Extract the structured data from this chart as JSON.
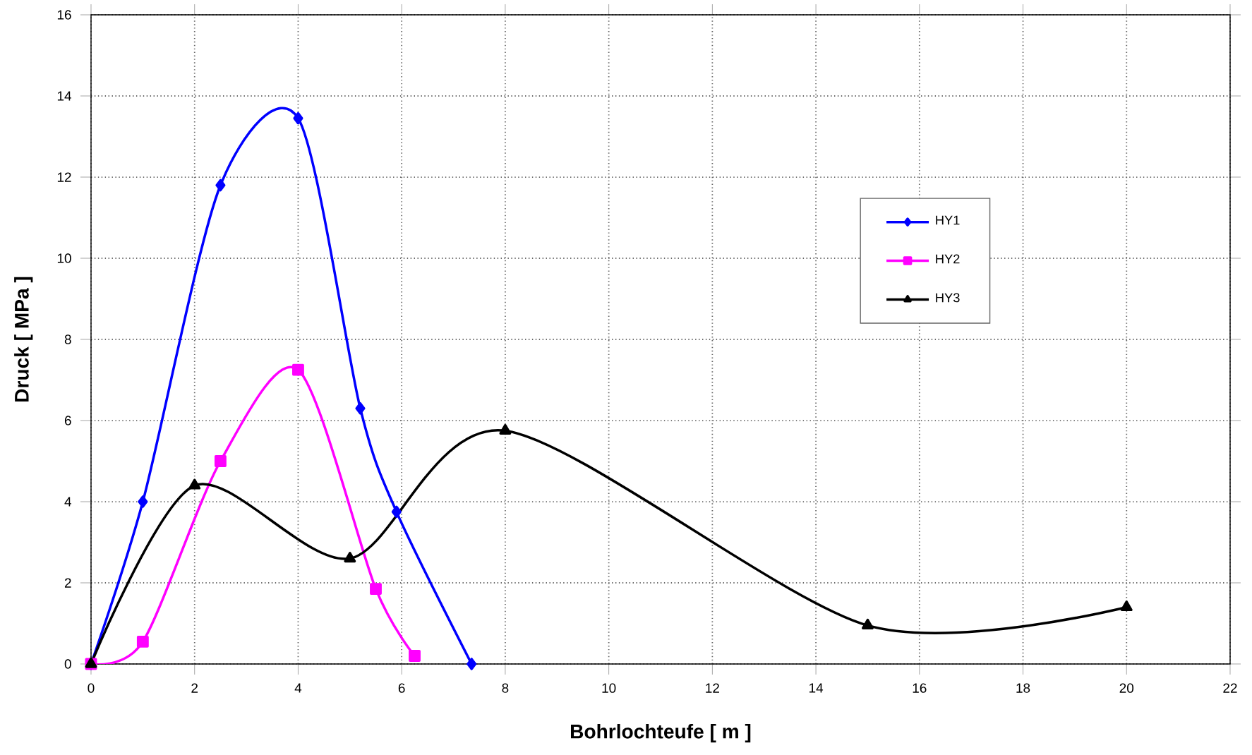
{
  "chart_data": {
    "type": "line",
    "xlabel": "Bohrlochteufe [ m ]",
    "ylabel": "Druck [ MPa ]",
    "xlim": [
      0,
      22
    ],
    "ylim": [
      0,
      16
    ],
    "xticks": [
      0,
      2,
      4,
      6,
      8,
      10,
      12,
      14,
      16,
      18,
      20,
      22
    ],
    "yticks": [
      0,
      2,
      4,
      6,
      8,
      10,
      12,
      14,
      16
    ],
    "grid": true,
    "legend": "top right",
    "line_style": "solid",
    "series": [
      {
        "name": "HY1",
        "color": "#0000ff",
        "marker": "diamond",
        "x": [
          0,
          1,
          2.5,
          4,
          5.2,
          5.9,
          7.35
        ],
        "values": [
          0,
          4.0,
          11.8,
          13.45,
          6.3,
          3.75,
          0
        ]
      },
      {
        "name": "HY2",
        "color": "#ff00ff",
        "marker": "square",
        "x": [
          0,
          1,
          2.5,
          4,
          5.5,
          6.25
        ],
        "values": [
          0,
          0.55,
          5.0,
          7.25,
          1.85,
          0.2
        ]
      },
      {
        "name": "HY3",
        "color": "#000000",
        "marker": "triangle",
        "x": [
          0,
          2,
          5,
          8,
          15,
          20
        ],
        "values": [
          0,
          4.4,
          2.6,
          5.75,
          0.95,
          1.4
        ]
      }
    ]
  }
}
